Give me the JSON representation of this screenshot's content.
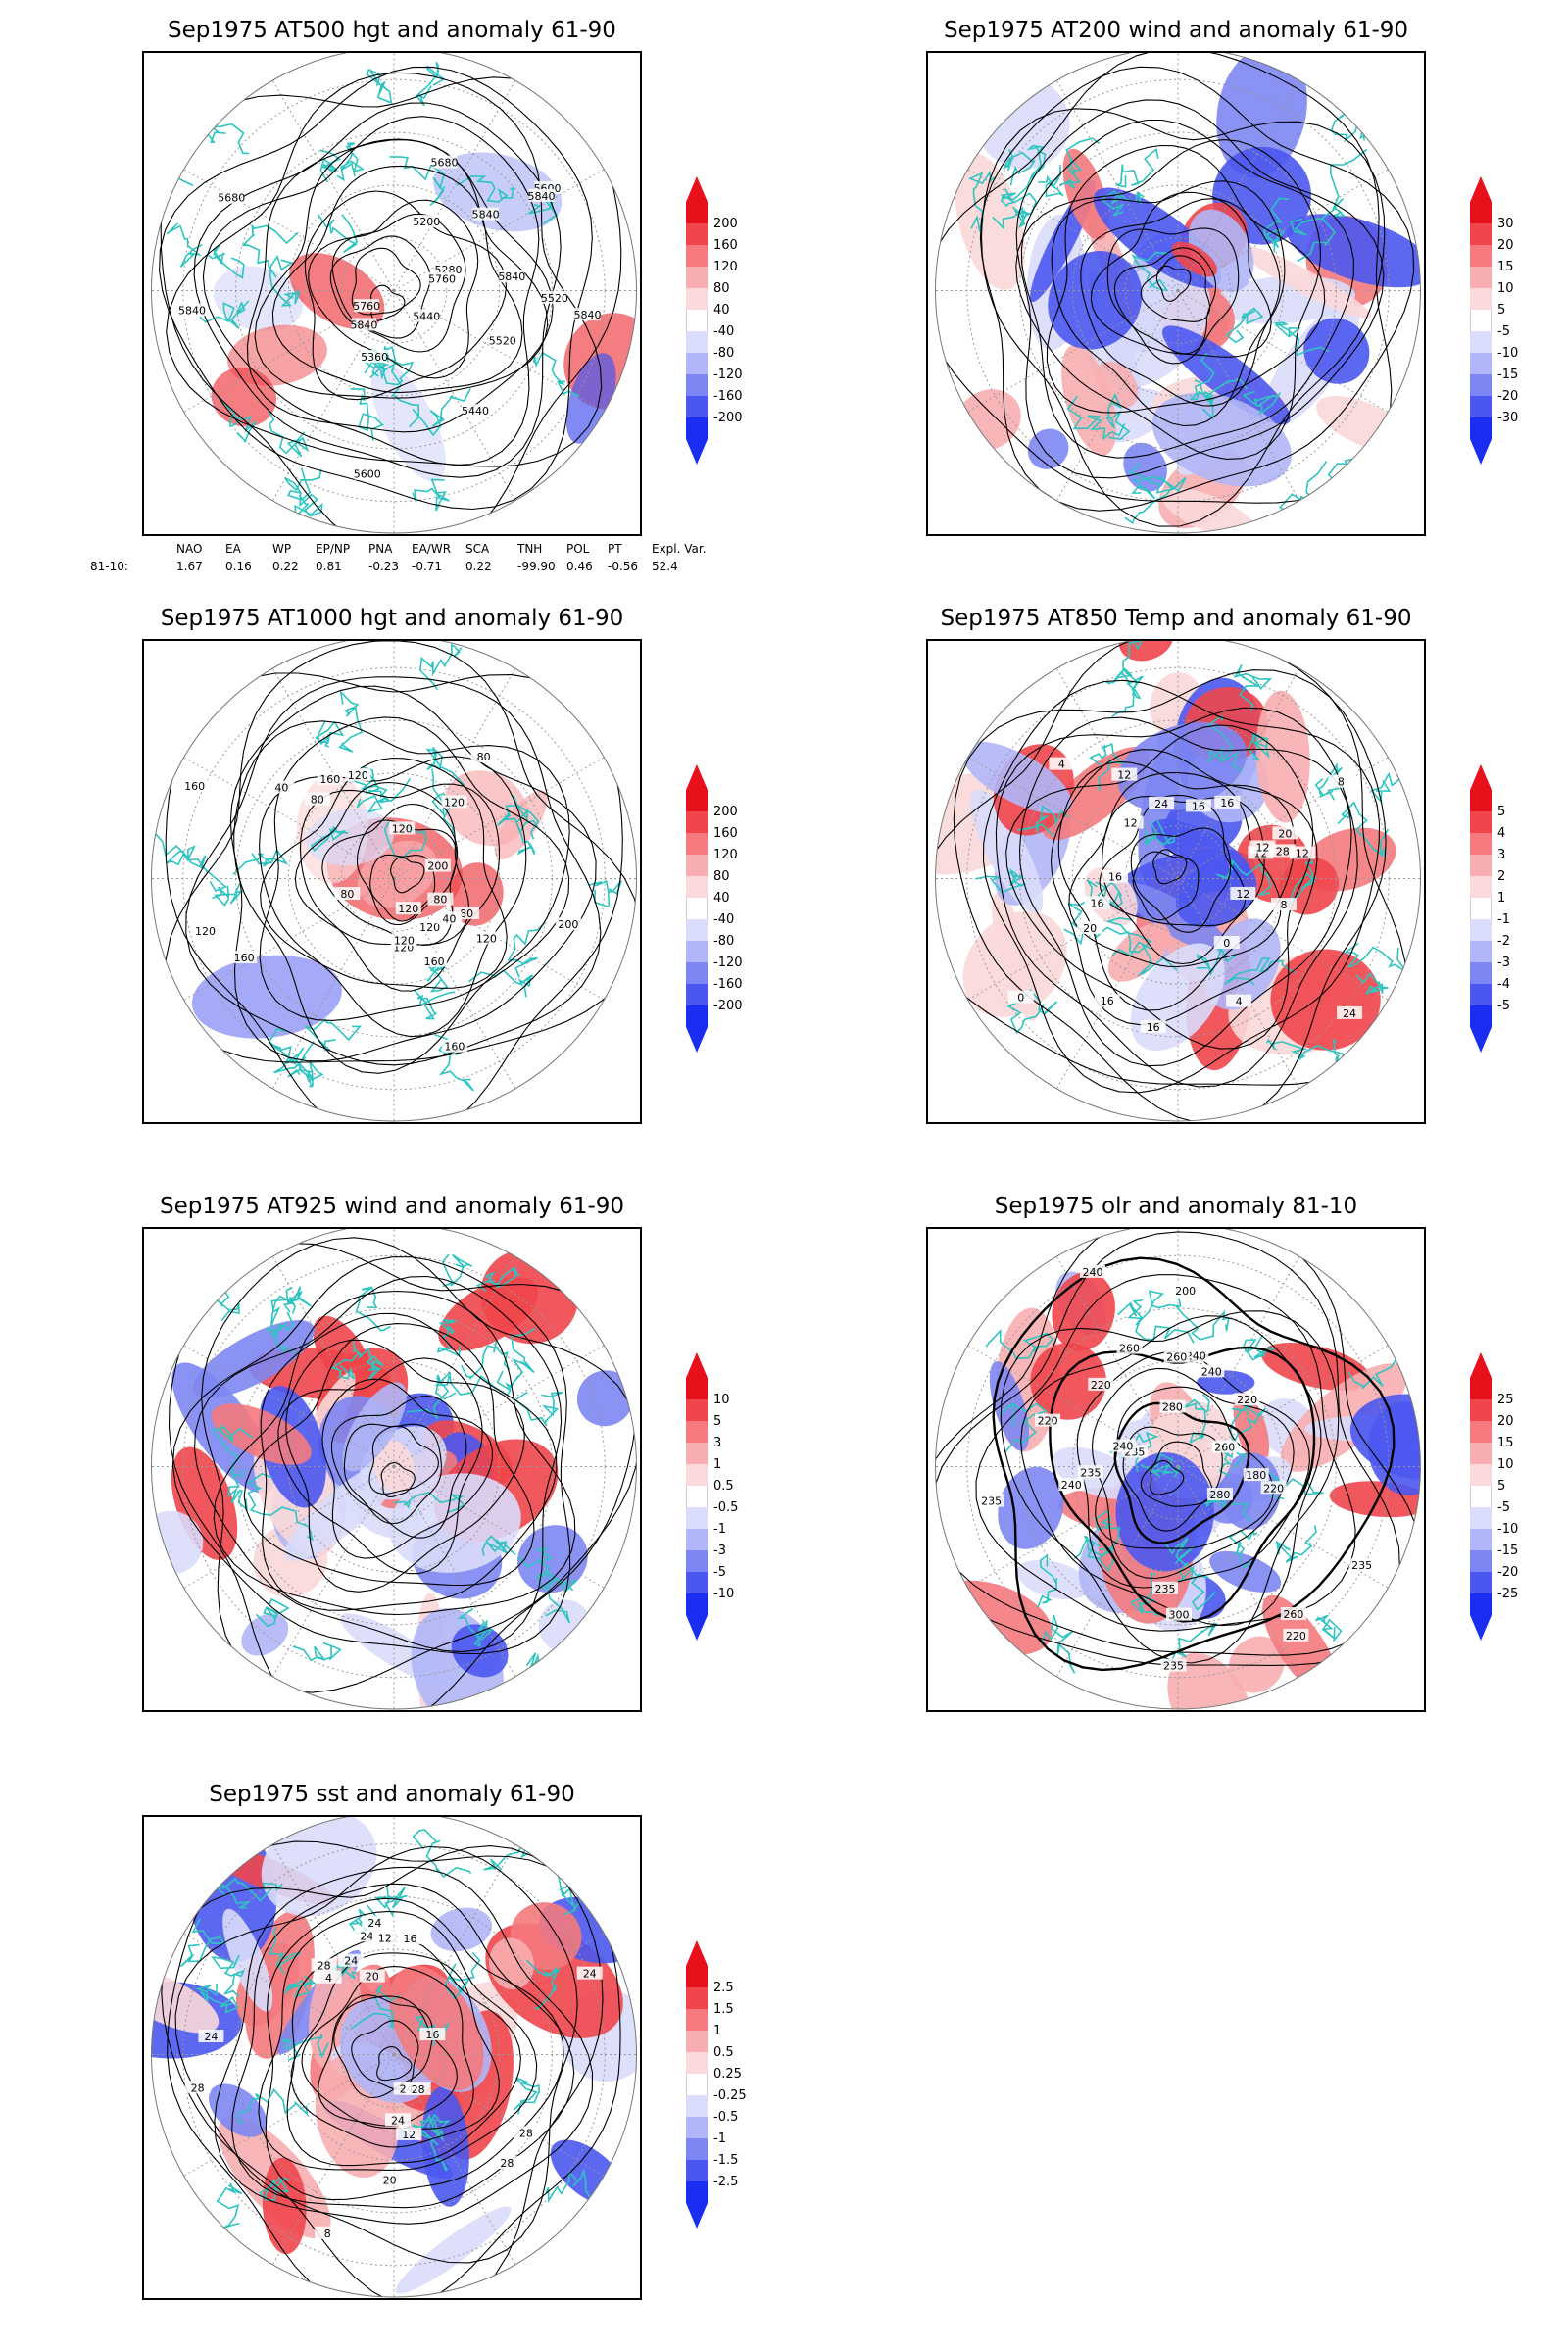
{
  "panels": [
    {
      "title": "Sep1975 AT500 hgt and anomaly 61-90",
      "colorbar": [
        "200",
        "160",
        "120",
        "80",
        "40",
        "-40",
        "-80",
        "-120",
        "-160",
        "-200"
      ],
      "contour_labels": [
        "5840",
        "5840",
        "5760",
        "5680",
        "5600",
        "5520",
        "5440",
        "5440",
        "5200",
        "5280",
        "5360",
        "5520",
        "5600",
        "5680",
        "5760",
        "5840",
        "5840",
        "5840",
        "5840"
      ]
    },
    {
      "title": "Sep1975 AT200 wind and anomaly 61-90",
      "colorbar": [
        "30",
        "20",
        "15",
        "10",
        "5",
        "-5",
        "-10",
        "-15",
        "-20",
        "-30"
      ],
      "contour_labels": []
    },
    {
      "title": "Sep1975 AT1000 hgt and anomaly 61-90",
      "colorbar": [
        "200",
        "160",
        "120",
        "80",
        "40",
        "-40",
        "-80",
        "-120",
        "-160",
        "-200"
      ],
      "contour_labels": [
        "120",
        "160",
        "200",
        "160",
        "120",
        "80",
        "120",
        "80",
        "160",
        "160",
        "40",
        "40",
        "80",
        "120",
        "120",
        "200",
        "160",
        "120",
        "80",
        "120",
        "120",
        "80",
        "120"
      ]
    },
    {
      "title": "Sep1975 AT850 Temp and anomaly 61-90",
      "colorbar": [
        "5",
        "4",
        "3",
        "2",
        "1",
        "-1",
        "-2",
        "-3",
        "-4",
        "-5"
      ],
      "contour_labels": [
        "16",
        "12",
        "8",
        "4",
        "0",
        "12",
        "16",
        "16",
        "12",
        "4",
        "0",
        "20",
        "24",
        "16",
        "12",
        "8",
        "12",
        "28",
        "20",
        "12",
        "24",
        "16",
        "16"
      ]
    },
    {
      "title": "Sep1975 AT925 wind and anomaly 61-90",
      "colorbar": [
        "10",
        "5",
        "3",
        "1",
        "0.5",
        "-0.5",
        "-1",
        "-3",
        "-5",
        "-10"
      ],
      "contour_labels": []
    },
    {
      "title": "Sep1975 olr and anomaly 81-10",
      "colorbar": [
        "25",
        "20",
        "15",
        "10",
        "5",
        "-5",
        "-10",
        "-15",
        "-20",
        "-25"
      ],
      "contour_labels": [
        "280",
        "260",
        "240",
        "220",
        "235",
        "235",
        "235",
        "220",
        "260",
        "240",
        "235",
        "220",
        "240",
        "200",
        "180",
        "220",
        "240",
        "235",
        "260",
        "280",
        "300",
        "235",
        "220",
        "240",
        "260"
      ]
    },
    {
      "title": "Sep1975 sst and anomaly 61-90",
      "colorbar": [
        "2.5",
        "1.5",
        "1",
        "0.5",
        "0.25",
        "-0.25",
        "-0.5",
        "-1",
        "-1.5",
        "-2.5"
      ],
      "contour_labels": [
        "28",
        "24",
        "28",
        "24",
        "20",
        "16",
        "12",
        "8",
        "4",
        "12",
        "24",
        "28",
        "28",
        "24",
        "20",
        "16",
        "12",
        "24",
        "24",
        "28",
        "24"
      ]
    }
  ],
  "teleconnection": {
    "headers": [
      "NAO",
      "EA",
      "WP",
      "EP/NP",
      "PNA",
      "EA/WR",
      "SCA",
      "TNH",
      "POL",
      "PT",
      "Expl. Var."
    ],
    "row_label": "81-10:",
    "values": [
      "1.67",
      "0.16",
      "0.22",
      "0.81",
      "-0.23",
      "-0.71",
      "0.22",
      "-99.90",
      "0.46",
      "-0.56",
      "52.4"
    ]
  },
  "colors": {
    "coast": "#2ec4c0",
    "contour": "#000000",
    "red": "#e8101a",
    "blue": "#1a2ef2",
    "grid": "#999999"
  }
}
